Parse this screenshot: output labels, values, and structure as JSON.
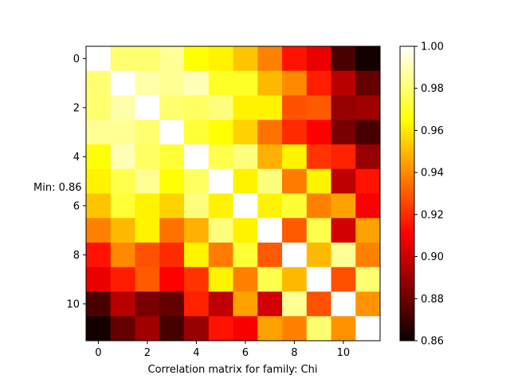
{
  "chart_data": {
    "type": "heatmap",
    "title": "",
    "xlabel": "Correlation matrix for family: Chi",
    "ylabel": "",
    "annotation": "Min: 0.86",
    "x_ticks": [
      "0",
      "2",
      "4",
      "6",
      "8",
      "10"
    ],
    "y_ticks": [
      "0",
      "2",
      "4",
      "6",
      "8",
      "10"
    ],
    "colorbar": {
      "colormap": "hot",
      "range": [
        0.86,
        1.0
      ],
      "ticks": [
        "0.86",
        "0.88",
        "0.90",
        "0.92",
        "0.94",
        "0.96",
        "0.98",
        "1.00"
      ]
    },
    "size": 12,
    "values": [
      [
        1.0,
        0.98,
        0.98,
        0.985,
        0.965,
        0.962,
        0.952,
        0.938,
        0.915,
        0.905,
        0.873,
        0.862
      ],
      [
        0.98,
        1.0,
        0.988,
        0.985,
        0.99,
        0.97,
        0.97,
        0.95,
        0.94,
        0.917,
        0.895,
        0.878
      ],
      [
        0.98,
        0.988,
        1.0,
        0.98,
        0.978,
        0.982,
        0.962,
        0.962,
        0.928,
        0.93,
        0.888,
        0.89
      ],
      [
        0.985,
        0.985,
        0.98,
        1.0,
        0.972,
        0.965,
        0.955,
        0.935,
        0.92,
        0.91,
        0.882,
        0.872
      ],
      [
        0.965,
        0.99,
        0.978,
        0.972,
        1.0,
        0.975,
        0.982,
        0.948,
        0.962,
        0.922,
        0.918,
        0.888
      ],
      [
        0.962,
        0.975,
        0.985,
        0.965,
        0.978,
        1.0,
        0.962,
        0.982,
        0.937,
        0.962,
        0.896,
        0.915
      ],
      [
        0.952,
        0.972,
        0.962,
        0.955,
        0.982,
        0.962,
        1.0,
        0.962,
        0.972,
        0.938,
        0.945,
        0.908
      ],
      [
        0.938,
        0.95,
        0.962,
        0.935,
        0.948,
        0.982,
        0.962,
        1.0,
        0.93,
        0.975,
        0.9,
        0.945
      ],
      [
        0.915,
        0.94,
        0.928,
        0.92,
        0.962,
        0.937,
        0.972,
        0.93,
        1.0,
        0.95,
        0.985,
        0.938
      ],
      [
        0.905,
        0.917,
        0.93,
        0.91,
        0.922,
        0.962,
        0.938,
        0.975,
        0.95,
        1.0,
        0.928,
        0.98
      ],
      [
        0.873,
        0.895,
        0.882,
        0.878,
        0.918,
        0.896,
        0.945,
        0.9,
        0.985,
        0.928,
        1.0,
        0.942
      ],
      [
        0.862,
        0.878,
        0.89,
        0.872,
        0.888,
        0.915,
        0.908,
        0.945,
        0.938,
        0.98,
        0.942,
        1.0
      ]
    ]
  }
}
